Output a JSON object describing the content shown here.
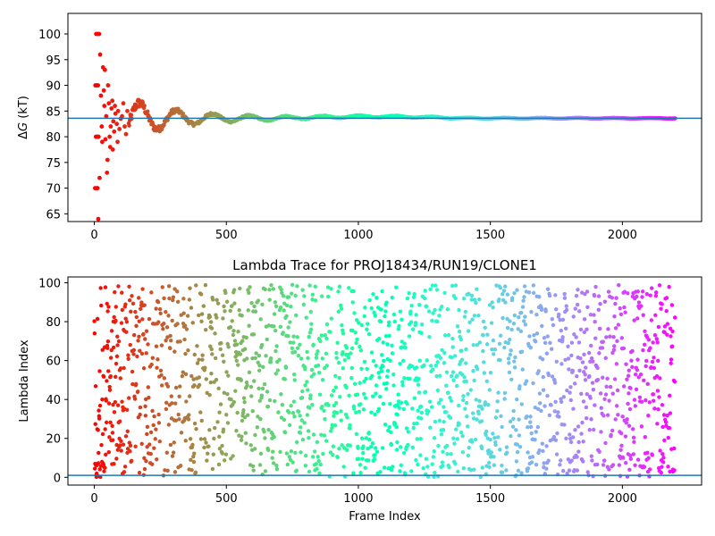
{
  "chart_data": [
    {
      "type": "scatter",
      "title": "",
      "xlabel": "",
      "ylabel_prefix": "Δ",
      "ylabel_italic": "G",
      "ylabel_suffix": " (kT)",
      "xlim": [
        -100,
        2300
      ],
      "ylim": [
        63.5,
        104
      ],
      "xticks": [
        0,
        500,
        1000,
        1500,
        2000
      ],
      "yticks": [
        65,
        70,
        75,
        80,
        85,
        90,
        95,
        100
      ],
      "hline": 83.6,
      "hline_color": "#1f77b4",
      "n_points": 2200,
      "colormap": "rainbow",
      "early_points": [
        {
          "x": 3,
          "y": 70
        },
        {
          "x": 8,
          "y": 70
        },
        {
          "x": 12,
          "y": 70
        },
        {
          "x": 4,
          "y": 90
        },
        {
          "x": 9,
          "y": 90
        },
        {
          "x": 14,
          "y": 90
        },
        {
          "x": 6,
          "y": 80
        },
        {
          "x": 11,
          "y": 80
        },
        {
          "x": 16,
          "y": 80
        },
        {
          "x": 7,
          "y": 100
        },
        {
          "x": 13,
          "y": 100
        },
        {
          "x": 18,
          "y": 100
        },
        {
          "x": 15,
          "y": 64
        },
        {
          "x": 20,
          "y": 72
        },
        {
          "x": 22,
          "y": 96
        },
        {
          "x": 25,
          "y": 88
        },
        {
          "x": 28,
          "y": 82
        },
        {
          "x": 30,
          "y": 79
        },
        {
          "x": 33,
          "y": 93.5
        },
        {
          "x": 36,
          "y": 89
        },
        {
          "x": 38,
          "y": 86
        },
        {
          "x": 40,
          "y": 93
        },
        {
          "x": 42,
          "y": 79.5
        },
        {
          "x": 45,
          "y": 84
        },
        {
          "x": 48,
          "y": 73
        },
        {
          "x": 50,
          "y": 75.5
        },
        {
          "x": 52,
          "y": 90
        },
        {
          "x": 55,
          "y": 86.5
        },
        {
          "x": 58,
          "y": 80
        },
        {
          "x": 60,
          "y": 78
        },
        {
          "x": 62,
          "y": 82
        },
        {
          "x": 65,
          "y": 85.5
        },
        {
          "x": 68,
          "y": 87
        },
        {
          "x": 70,
          "y": 77.5
        },
        {
          "x": 72,
          "y": 83
        },
        {
          "x": 75,
          "y": 81
        },
        {
          "x": 78,
          "y": 86
        },
        {
          "x": 80,
          "y": 84.5
        },
        {
          "x": 85,
          "y": 82.5
        },
        {
          "x": 88,
          "y": 79
        },
        {
          "x": 90,
          "y": 85
        },
        {
          "x": 95,
          "y": 81.5
        },
        {
          "x": 100,
          "y": 83.5
        },
        {
          "x": 105,
          "y": 84
        },
        {
          "x": 110,
          "y": 86.5
        },
        {
          "x": 115,
          "y": 82
        },
        {
          "x": 120,
          "y": 80.5
        },
        {
          "x": 125,
          "y": 85
        }
      ]
    },
    {
      "type": "scatter",
      "title": "Lambda Trace for PROJ18434/RUN19/CLONE1",
      "xlabel": "Frame Index",
      "ylabel": "Lambda Index",
      "xlim": [
        -100,
        2300
      ],
      "ylim": [
        -4,
        103
      ],
      "xticks": [
        0,
        500,
        1000,
        1500,
        2000
      ],
      "yticks": [
        0,
        20,
        40,
        60,
        80,
        100
      ],
      "hline": 1,
      "hline_color": "#1f77b4",
      "n_points": 2200,
      "y_range": [
        0,
        99
      ],
      "colormap": "rainbow"
    }
  ]
}
